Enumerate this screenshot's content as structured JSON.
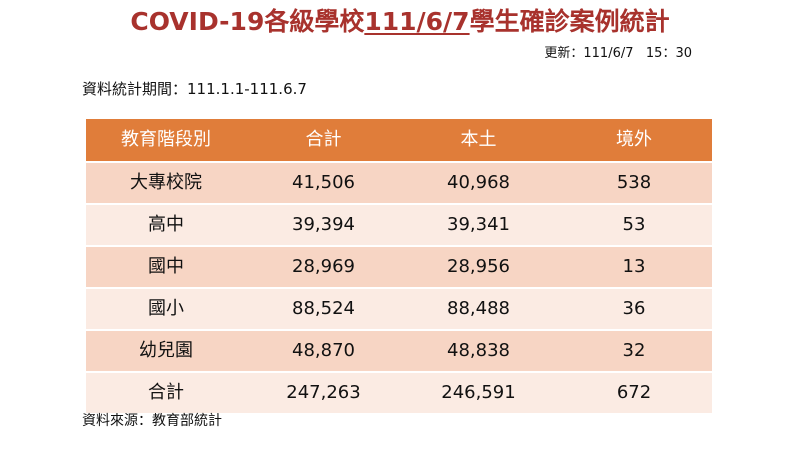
{
  "title": {
    "prefix": "COVID-19各級學校",
    "date": "111/6/7",
    "suffix": "學生確診案例統計"
  },
  "updated": "更新：111/6/7   15：30",
  "period": "資料統計期間：111.1.1-111.6.7",
  "table": {
    "headers": [
      "教育階段別",
      "合計",
      "本土",
      "境外"
    ],
    "rows": [
      {
        "level": "大專校院",
        "total": "41,506",
        "local": "40,968",
        "imported": "538"
      },
      {
        "level": "高中",
        "total": "39,394",
        "local": "39,341",
        "imported": "53"
      },
      {
        "level": "國中",
        "total": "28,969",
        "local": "28,956",
        "imported": "13"
      },
      {
        "level": "國小",
        "total": "88,524",
        "local": "88,488",
        "imported": "36"
      },
      {
        "level": "幼兒園",
        "total": "48,870",
        "local": "48,838",
        "imported": "32"
      },
      {
        "level": "合計",
        "total": "247,263",
        "local": "246,591",
        "imported": "672"
      }
    ]
  },
  "source": "資料來源：教育部統計"
}
